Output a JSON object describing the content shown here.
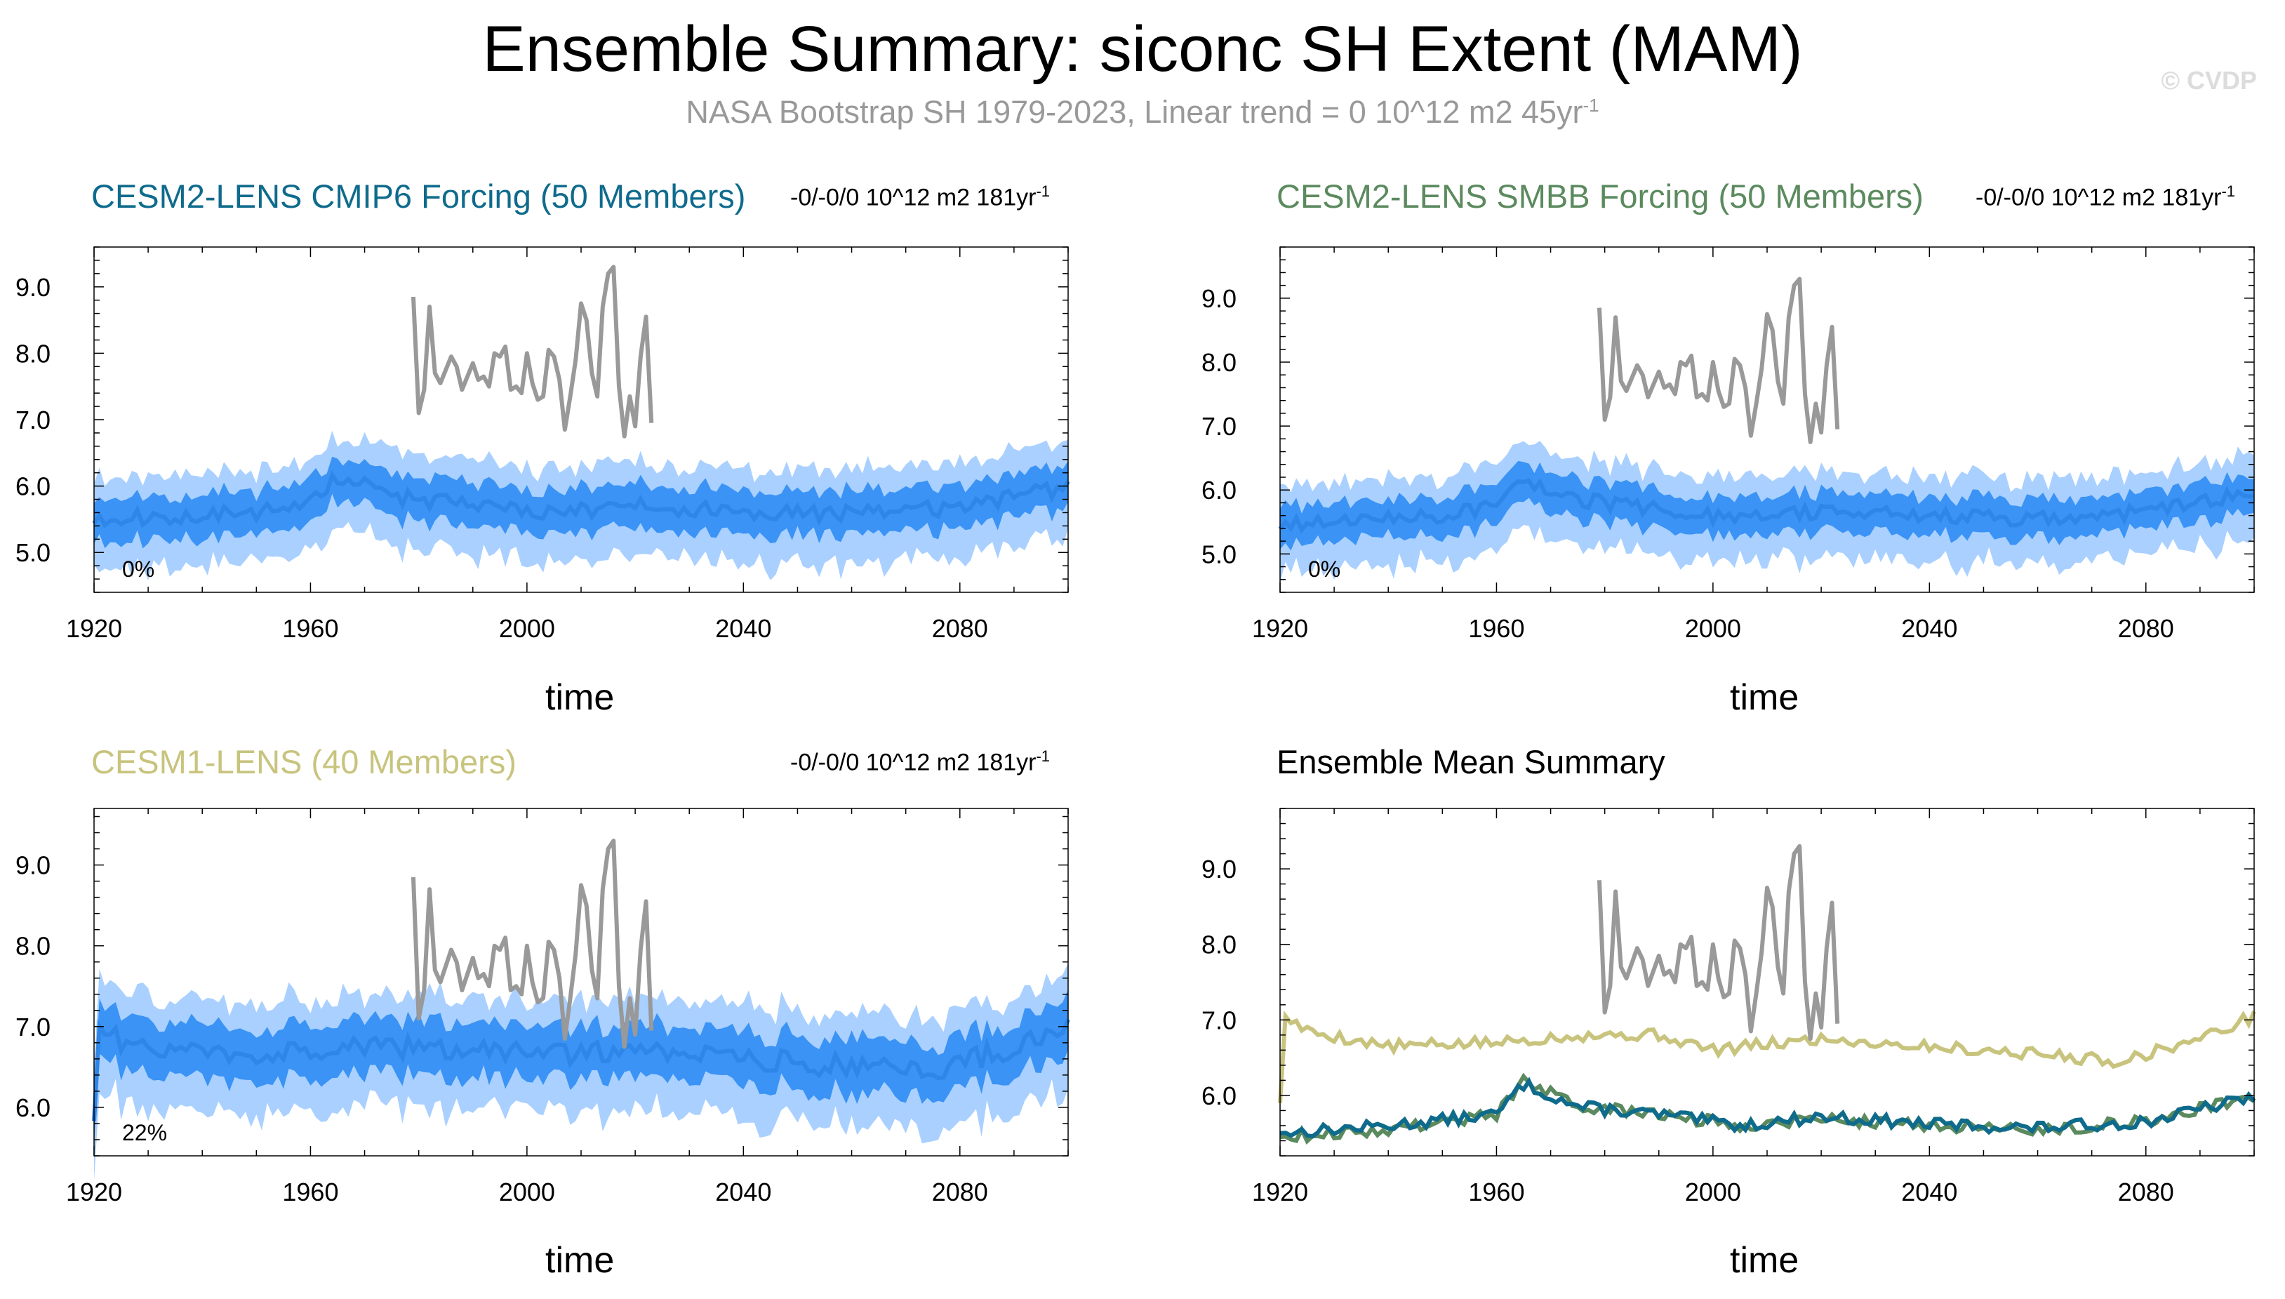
{
  "header": {
    "title": "Ensemble Summary: siconc SH Extent (MAM)",
    "subtitle_main": "NASA Bootstrap SH 1979-2023, Linear trend = 0 10^12 m2 45yr",
    "subtitle_exp": "-1",
    "watermark": "© CVDP"
  },
  "colors": {
    "obs": "#999999",
    "band_outer": "#a9d0ff",
    "band_inner": "#3a93f5",
    "mean_line": "#2e86e8",
    "cesm2_cmip6": "#0f6b8c",
    "cesm2_smbb": "#5b8a5e",
    "cesm1": "#c8c47e",
    "grid": "#000000"
  },
  "chart_data": [
    {
      "id": "cesm2-cmip6",
      "type": "area",
      "title": "CESM2-LENS CMIP6 Forcing (50 Members)",
      "title_color": "#0f6b8c",
      "trend_main": "-0/-0/0 10^12 m2 181yr",
      "trend_exp": "-1",
      "xlabel": "time",
      "xlim": [
        1920,
        2100
      ],
      "ylim": [
        4.4,
        9.6
      ],
      "xticks": [
        "1920",
        "1960",
        "2000",
        "2040",
        "2080"
      ],
      "yticks": [
        "5.0",
        "6.0",
        "7.0",
        "8.0",
        "9.0"
      ],
      "pct_label": "0%",
      "mean_anchors": [
        [
          1920,
          5.5
        ],
        [
          1935,
          5.55
        ],
        [
          1950,
          5.6
        ],
        [
          1960,
          5.75
        ],
        [
          1965,
          6.15
        ],
        [
          1975,
          5.85
        ],
        [
          1990,
          5.7
        ],
        [
          2005,
          5.6
        ],
        [
          2020,
          5.7
        ],
        [
          2040,
          5.62
        ],
        [
          2060,
          5.58
        ],
        [
          2080,
          5.68
        ],
        [
          2100,
          5.98
        ]
      ],
      "inner_half": 0.32,
      "outer_half": 0.65,
      "noise_amp": 0.12,
      "seed": 11
    },
    {
      "id": "cesm2-smbb",
      "type": "area",
      "title": "CESM2-LENS SMBB Forcing (50 Members)",
      "title_color": "#5b8a5e",
      "trend_main": "-0/-0/0 10^12 m2 181yr",
      "trend_exp": "-1",
      "xlabel": "time",
      "xlim": [
        1920,
        2100
      ],
      "ylim": [
        4.4,
        9.8
      ],
      "xticks": [
        "1920",
        "1960",
        "2000",
        "2040",
        "2080"
      ],
      "yticks": [
        "5.0",
        "6.0",
        "7.0",
        "8.0",
        "9.0"
      ],
      "pct_label": "0%",
      "mean_anchors": [
        [
          1920,
          5.45
        ],
        [
          1935,
          5.5
        ],
        [
          1950,
          5.6
        ],
        [
          1960,
          5.75
        ],
        [
          1965,
          6.2
        ],
        [
          1975,
          5.85
        ],
        [
          1990,
          5.7
        ],
        [
          2005,
          5.55
        ],
        [
          2020,
          5.65
        ],
        [
          2040,
          5.6
        ],
        [
          2060,
          5.55
        ],
        [
          2080,
          5.65
        ],
        [
          2100,
          5.95
        ]
      ],
      "inner_half": 0.3,
      "outer_half": 0.62,
      "noise_amp": 0.12,
      "seed": 29
    },
    {
      "id": "cesm1",
      "type": "area",
      "title": "CESM1-LENS (40 Members)",
      "title_color": "#c8c47e",
      "trend_main": "-0/-0/0 10^12 m2 181yr",
      "trend_exp": "-1",
      "xlabel": "time",
      "xlim": [
        1920,
        2100
      ],
      "ylim": [
        5.4,
        9.7
      ],
      "xticks": [
        "1920",
        "1960",
        "2000",
        "2040",
        "2080"
      ],
      "yticks": [
        "6.0",
        "7.0",
        "8.0",
        "9.0"
      ],
      "pct_label": "22%",
      "mean_anchors": [
        [
          1920,
          5.9
        ],
        [
          1921,
          6.95
        ],
        [
          1930,
          6.7
        ],
        [
          1950,
          6.65
        ],
        [
          1970,
          6.75
        ],
        [
          1990,
          6.7
        ],
        [
          2005,
          6.65
        ],
        [
          2020,
          6.7
        ],
        [
          2040,
          6.6
        ],
        [
          2060,
          6.5
        ],
        [
          2075,
          6.45
        ],
        [
          2090,
          6.75
        ],
        [
          2100,
          7.0
        ]
      ],
      "inner_half": 0.33,
      "outer_half": 0.65,
      "noise_amp": 0.14,
      "seed": 47
    },
    {
      "id": "ensemble-mean",
      "type": "line",
      "title": "Ensemble Mean Summary",
      "title_color": "#000000",
      "xlabel": "time",
      "xlim": [
        1920,
        2100
      ],
      "ylim": [
        5.2,
        9.8
      ],
      "xticks": [
        "1920",
        "1960",
        "2000",
        "2040",
        "2080"
      ],
      "yticks": [
        "6.0",
        "7.0",
        "8.0",
        "9.0"
      ],
      "series": [
        {
          "name": "CESM1-LENS",
          "color": "#c8c47e",
          "anchors": [
            [
              1920,
              5.9
            ],
            [
              1921,
              7.05
            ],
            [
              1925,
              6.85
            ],
            [
              1940,
              6.65
            ],
            [
              1960,
              6.7
            ],
            [
              1975,
              6.8
            ],
            [
              1990,
              6.8
            ],
            [
              2000,
              6.6
            ],
            [
              2020,
              6.75
            ],
            [
              2040,
              6.65
            ],
            [
              2060,
              6.55
            ],
            [
              2075,
              6.45
            ],
            [
              2090,
              6.75
            ],
            [
              2100,
              7.05
            ]
          ],
          "seed": 5
        },
        {
          "name": "CESM2-LENS SMBB",
          "color": "#5b8a5e",
          "anchors": [
            [
              1920,
              5.45
            ],
            [
              1940,
              5.55
            ],
            [
              1960,
              5.75
            ],
            [
              1965,
              6.2
            ],
            [
              1975,
              5.85
            ],
            [
              1990,
              5.75
            ],
            [
              2005,
              5.6
            ],
            [
              2020,
              5.7
            ],
            [
              2040,
              5.6
            ],
            [
              2060,
              5.55
            ],
            [
              2080,
              5.65
            ],
            [
              2100,
              6.0
            ]
          ],
          "seed": 9
        },
        {
          "name": "CESM2-LENS CMIP6",
          "color": "#0f6b8c",
          "anchors": [
            [
              1920,
              5.5
            ],
            [
              1940,
              5.6
            ],
            [
              1960,
              5.75
            ],
            [
              1965,
              6.15
            ],
            [
              1975,
              5.85
            ],
            [
              1990,
              5.75
            ],
            [
              2005,
              5.6
            ],
            [
              2020,
              5.72
            ],
            [
              2040,
              5.62
            ],
            [
              2060,
              5.57
            ],
            [
              2080,
              5.65
            ],
            [
              2100,
              5.98
            ]
          ],
          "seed": 13
        }
      ]
    }
  ],
  "observations": {
    "name": "NASA Bootstrap",
    "years": [
      1979,
      1980,
      1981,
      1982,
      1983,
      1984,
      1985,
      1986,
      1987,
      1988,
      1989,
      1990,
      1991,
      1992,
      1993,
      1994,
      1995,
      1996,
      1997,
      1998,
      1999,
      2000,
      2001,
      2002,
      2003,
      2004,
      2005,
      2006,
      2007,
      2008,
      2009,
      2010,
      2011,
      2012,
      2013,
      2014,
      2015,
      2016,
      2017,
      2018,
      2019,
      2020,
      2021,
      2022,
      2023
    ],
    "values": [
      8.85,
      7.1,
      7.45,
      8.7,
      7.7,
      7.55,
      7.75,
      7.95,
      7.8,
      7.45,
      7.65,
      7.85,
      7.6,
      7.65,
      7.5,
      8.0,
      7.95,
      8.1,
      7.45,
      7.5,
      7.4,
      8.0,
      7.55,
      7.3,
      7.35,
      8.05,
      7.95,
      7.6,
      6.85,
      7.35,
      7.9,
      8.75,
      8.5,
      7.7,
      7.35,
      8.7,
      9.2,
      9.3,
      7.5,
      6.75,
      7.35,
      6.9,
      7.95,
      8.55,
      6.95
    ]
  }
}
